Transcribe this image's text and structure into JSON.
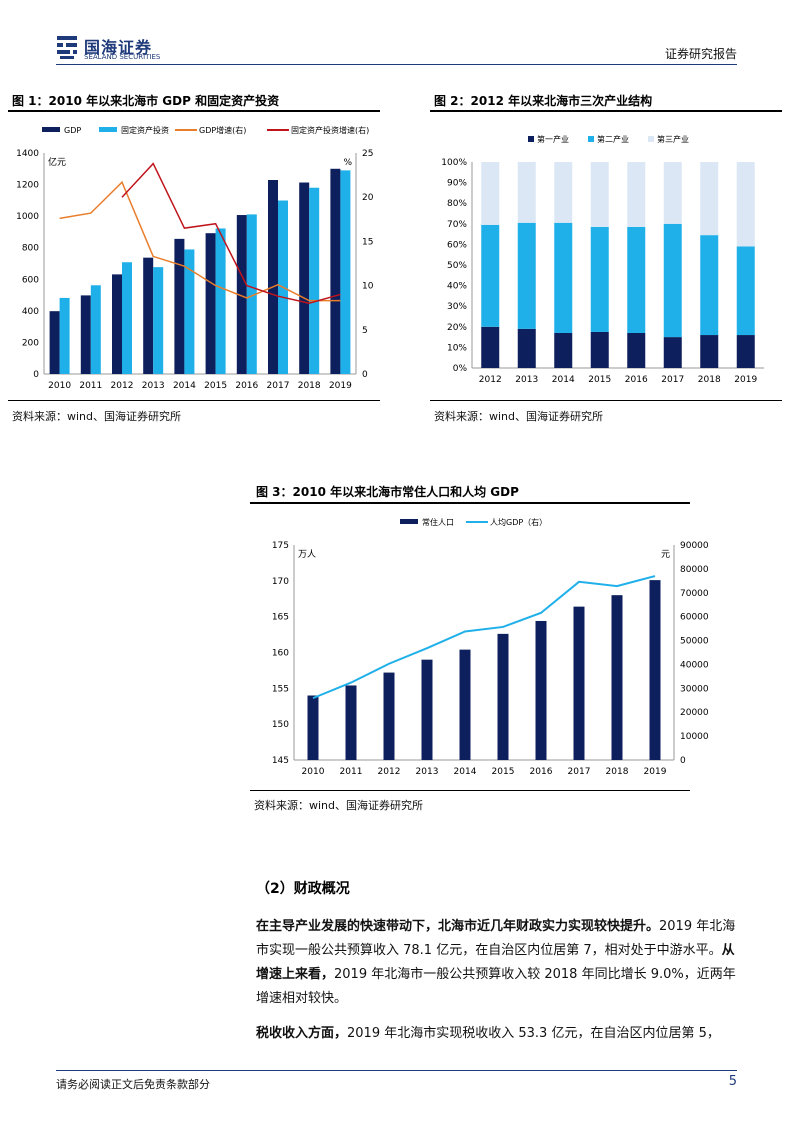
{
  "header": {
    "logo_cn": "国海证券",
    "logo_en": "SEALAND SECURITIES",
    "report_type": "证券研究报告"
  },
  "figures": [
    {
      "title": "图 1：2010 年以来北海市 GDP 和固定资产投资",
      "source": "资料来源：wind、国海证券研究所"
    },
    {
      "title": "图 2：2012 年以来北海市三次产业结构",
      "source": "资料来源：wind、国海证券研究所"
    },
    {
      "title": "图 3：2010 年以来北海市常住人口和人均 GDP",
      "source": "资料来源：wind、国海证券研究所"
    }
  ],
  "chart_data": [
    {
      "type": "bar",
      "categories": [
        "2010",
        "2011",
        "2012",
        "2013",
        "2014",
        "2015",
        "2016",
        "2017",
        "2018",
        "2019"
      ],
      "series": [
        {
          "name": "GDP",
          "type": "bar",
          "axis": "left",
          "color": "#0d1f5c",
          "values": [
            398,
            498,
            631,
            737,
            856,
            892,
            1007,
            1229,
            1213,
            1300
          ]
        },
        {
          "name": "固定资产投资",
          "type": "bar",
          "axis": "left",
          "color": "#1fb0ea",
          "values": [
            482,
            562,
            708,
            677,
            789,
            922,
            1011,
            1099,
            1180,
            1290
          ]
        },
        {
          "name": "GDP增速(右)",
          "type": "line",
          "axis": "right",
          "color": "#e97d2a",
          "values": [
            17.6,
            18.2,
            21.7,
            13.3,
            12.2,
            10.0,
            8.6,
            10.1,
            8.3,
            8.3
          ]
        },
        {
          "name": "固定资产投资增速(右)",
          "type": "line",
          "axis": "right",
          "color": "#c0141c",
          "values": [
            null,
            null,
            20.0,
            23.8,
            16.5,
            17.0,
            10.0,
            8.8,
            8.0,
            9.0
          ]
        }
      ],
      "left_unit": "亿元",
      "right_unit": "%",
      "ylim": [
        0,
        1400
      ],
      "y_ticks": [
        0,
        200,
        400,
        600,
        800,
        1000,
        1200,
        1400
      ],
      "ylim_right": [
        0,
        25
      ],
      "y_ticks_right": [
        0,
        5,
        10,
        15,
        20,
        25
      ],
      "legend": "top"
    },
    {
      "type": "bar",
      "stacked": true,
      "categories": [
        "2012",
        "2013",
        "2014",
        "2015",
        "2016",
        "2017",
        "2018",
        "2019"
      ],
      "series": [
        {
          "name": "第一产业",
          "color": "#0d1f5c",
          "values": [
            20,
            19,
            17,
            17.5,
            17,
            15,
            16,
            16
          ]
        },
        {
          "name": "第二产业",
          "color": "#1fb0ea",
          "values": [
            49.5,
            51.5,
            53.5,
            51,
            51.5,
            55,
            48.5,
            43
          ]
        },
        {
          "name": "第三产业",
          "color": "#dce7f5",
          "values": [
            30.5,
            29.5,
            29.5,
            31.5,
            31.5,
            30,
            35.5,
            41
          ]
        }
      ],
      "ylim": [
        0,
        100
      ],
      "y_ticks": [
        "0%",
        "10%",
        "20%",
        "30%",
        "40%",
        "50%",
        "60%",
        "70%",
        "80%",
        "90%",
        "100%"
      ],
      "legend": "top"
    },
    {
      "type": "bar",
      "categories": [
        "2010",
        "2011",
        "2012",
        "2013",
        "2014",
        "2015",
        "2016",
        "2017",
        "2018",
        "2019"
      ],
      "series": [
        {
          "name": "常住人口",
          "type": "bar",
          "axis": "left",
          "color": "#0d1f5c",
          "values": [
            154.0,
            155.4,
            157.2,
            159.0,
            160.4,
            162.6,
            164.4,
            166.4,
            168.0,
            170.1
          ]
        },
        {
          "name": "人均GDP（右）",
          "type": "line",
          "axis": "right",
          "color": "#1fb0ea",
          "values": [
            25900,
            32400,
            40300,
            46800,
            53800,
            55700,
            61600,
            74600,
            72800,
            77000
          ]
        }
      ],
      "left_unit": "万人",
      "right_unit": "元",
      "ylim": [
        145,
        175
      ],
      "y_ticks": [
        145,
        150,
        155,
        160,
        165,
        170,
        175
      ],
      "ylim_right": [
        0,
        90000
      ],
      "y_ticks_right": [
        0,
        10000,
        20000,
        30000,
        40000,
        50000,
        60000,
        70000,
        80000,
        90000
      ],
      "legend": "top"
    }
  ],
  "section": {
    "title": "（2）财政概况"
  },
  "paragraphs": {
    "p1": {
      "bold1": "在主导产业发展的快速带动下，北海市近几年财政实力实现较快提升。",
      "text1": "2019 年北海市实现一般公共预算收入 78.1 亿元，在自治区内位居第 7，相对处于中游水平。",
      "bold2": "从增速上来看，",
      "text2": "2019 年北海市一般公共预算收入较 2018 年同比增长 9.0%，近两年增速相对较快。"
    },
    "p2": {
      "bold1": "税收收入方面，",
      "text1": "2019 年北海市实现税收收入 53.3 亿元，在自治区内位居第 5，"
    }
  },
  "footer": {
    "disclaimer": "请务必阅读正文后免责条款部分",
    "page": "5"
  }
}
